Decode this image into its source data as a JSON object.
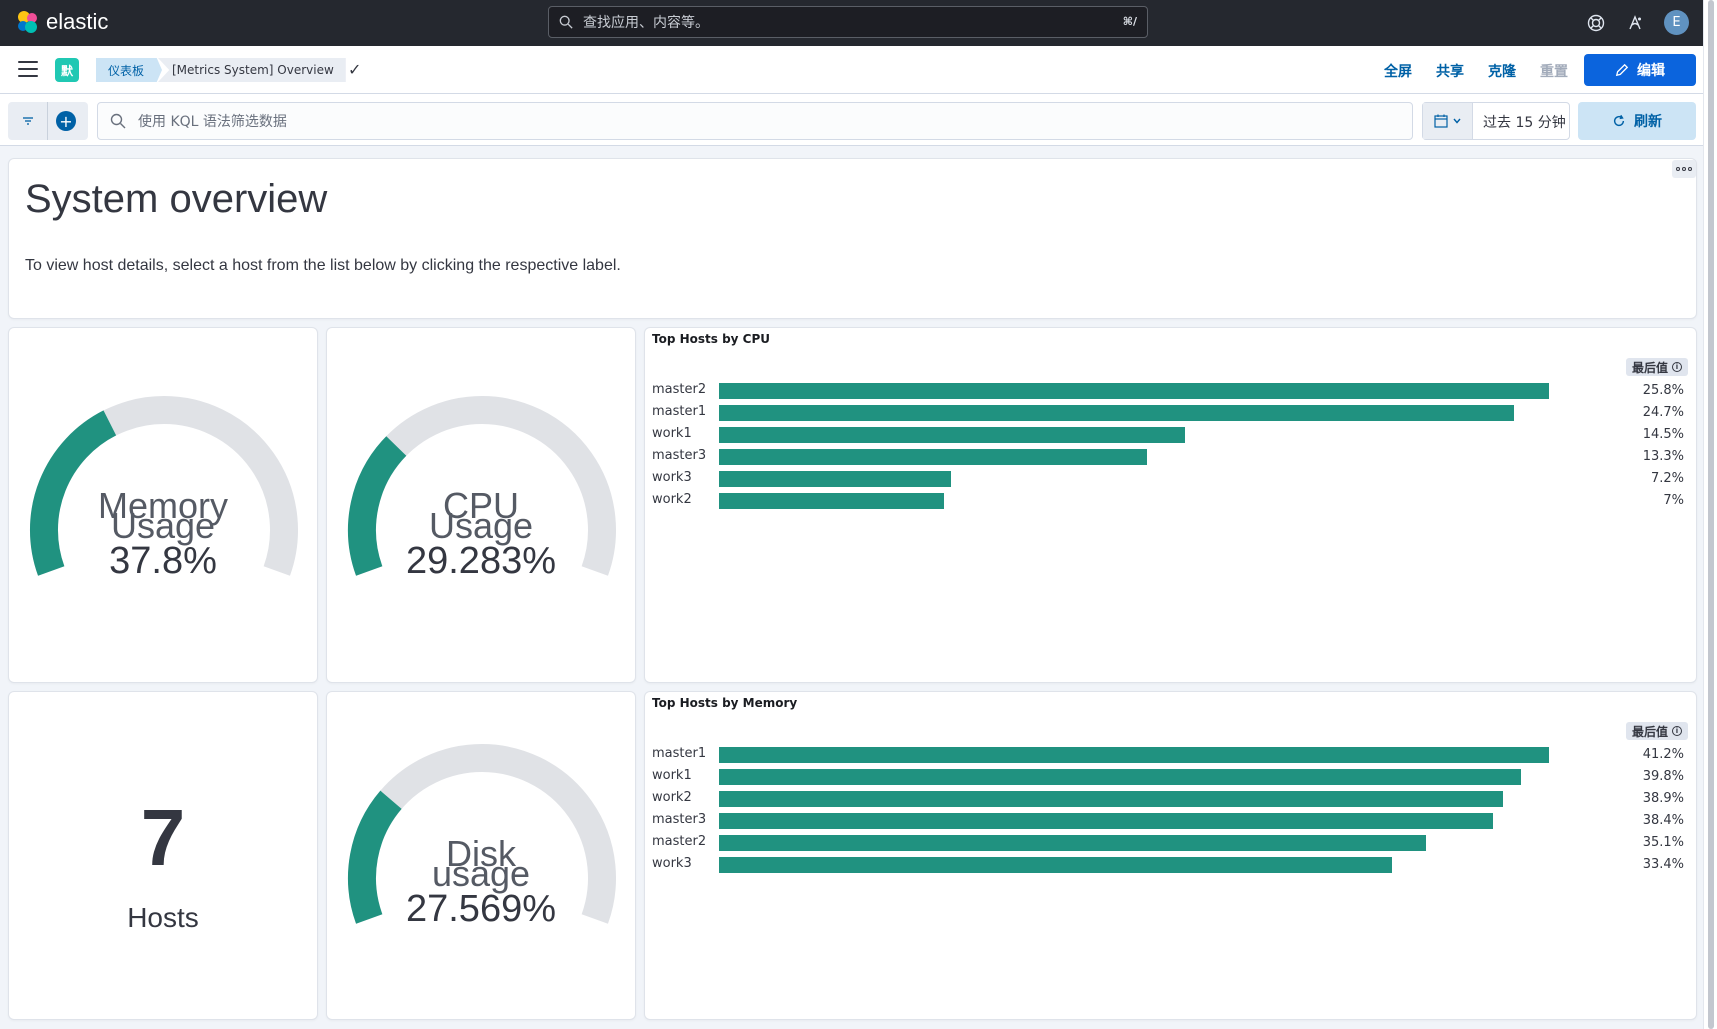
{
  "header": {
    "logo_text": "elastic",
    "search_placeholder": "查找应用、内容等。",
    "search_shortcut": "⌘/",
    "avatar_initial": "E"
  },
  "subheader": {
    "space_badge": "默",
    "breadcrumbs": [
      "仪表板",
      "[Metrics System] Overview"
    ],
    "actions": {
      "fullscreen": "全屏",
      "share": "共享",
      "clone": "克隆",
      "reset": "重置",
      "edit": "编辑"
    }
  },
  "querybar": {
    "kql_placeholder": "使用 KQL 语法筛选数据",
    "time_range": "过去 15 分钟",
    "refresh_label": "刷新"
  },
  "overview": {
    "title": "System overview",
    "text": "To view host details, select a host from the list below by clicking the respective label."
  },
  "gauges": {
    "memory": {
      "label_line1": "Memory",
      "label_line2": "Usage",
      "value_text": "37.8%",
      "value": 0.378
    },
    "cpu": {
      "label_line1": "CPU",
      "label_line2": "Usage",
      "value_text": "29.283%",
      "value": 0.29283
    },
    "disk": {
      "label_line1": "Disk",
      "label_line2": "usage",
      "value_text": "27.569%",
      "value": 0.27569
    }
  },
  "hosts_metric": {
    "value": "7",
    "label": "Hosts"
  },
  "colors": {
    "accent": "#209280",
    "track": "#e0e2e6",
    "primary": "#0b64dd",
    "link": "#0061a6"
  },
  "chart_data": [
    {
      "type": "bar",
      "title": "Top Hosts by CPU",
      "legend_label": "最后值",
      "categories": [
        "master2",
        "master1",
        "work1",
        "master3",
        "work3",
        "work2"
      ],
      "values": [
        25.8,
        24.7,
        14.5,
        13.3,
        7.2,
        7
      ],
      "value_labels": [
        "25.8%",
        "24.7%",
        "14.5%",
        "13.3%",
        "7.2%",
        "7%"
      ]
    },
    {
      "type": "bar",
      "title": "Top Hosts by Memory",
      "legend_label": "最后值",
      "categories": [
        "master1",
        "work1",
        "work2",
        "master3",
        "master2",
        "work3"
      ],
      "values": [
        41.2,
        39.8,
        38.9,
        38.4,
        35.1,
        33.4
      ],
      "value_labels": [
        "41.2%",
        "39.8%",
        "38.9%",
        "38.4%",
        "35.1%",
        "33.4%"
      ]
    }
  ]
}
